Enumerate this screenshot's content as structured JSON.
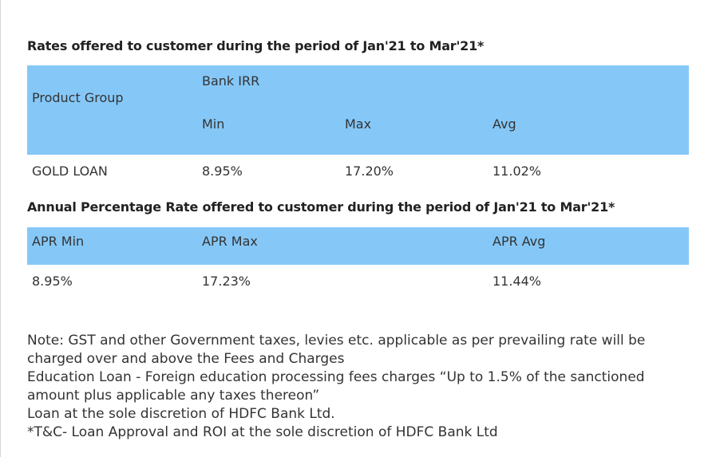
{
  "rates_heading": "Rates offered to customer during the period of Jan'21 to Mar'21*",
  "rates_table": {
    "product_group_label": "Product Group",
    "bank_irr_label": "Bank IRR",
    "min_label": "Min",
    "max_label": "Max",
    "avg_label": "Avg",
    "row": {
      "product": "GOLD LOAN",
      "min": "8.95%",
      "max": "17.20%",
      "avg": "11.02%"
    },
    "header_color": "#85c8f8"
  },
  "apr_heading": "Annual Percentage Rate offered to customer during the period of Jan'21 to Mar'21*",
  "apr_table": {
    "min_label": "APR Min",
    "max_label": "APR Max",
    "avg_label": "APR Avg",
    "row": {
      "min": "8.95%",
      "max": "17.23%",
      "avg": "11.44%"
    }
  },
  "notes": [
    "Note: GST and other Government taxes, levies etc. applicable as per prevailing rate will be charged over and above the Fees and Charges",
    "Education Loan - Foreign education processing fees charges “Up to 1.5% of the sanctioned amount plus applicable any taxes thereon”",
    "Loan at the sole discretion of HDFC Bank Ltd.",
    "*T&C- Loan Approval and ROI at the sole discretion of HDFC Bank Ltd"
  ]
}
